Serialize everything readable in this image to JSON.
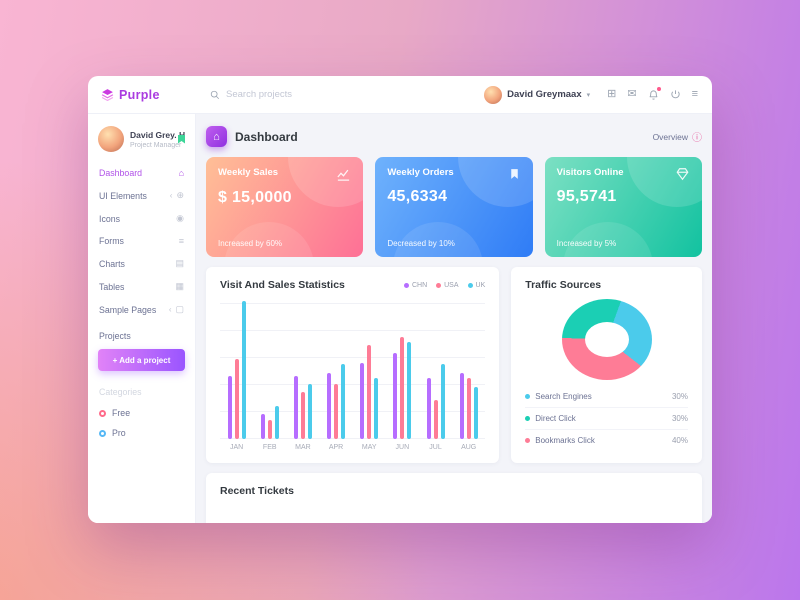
{
  "topbar": {
    "logo": "Purple",
    "search_placeholder": "Search projects",
    "user_name": "David Greymaax"
  },
  "sidebar": {
    "profile": {
      "name": "David Grey. H",
      "role": "Project Manager"
    },
    "items": [
      {
        "label": "Dashboard",
        "icon_name": "home-icon",
        "glyph": "⌂",
        "active": true,
        "chevron": false
      },
      {
        "label": "UI Elements",
        "icon_name": "ui-elements-icon",
        "glyph": "⊕",
        "active": false,
        "chevron": true
      },
      {
        "label": "Icons",
        "icon_name": "icons-icon",
        "glyph": "◉",
        "active": false,
        "chevron": false
      },
      {
        "label": "Forms",
        "icon_name": "forms-icon",
        "glyph": "≡",
        "active": false,
        "chevron": false
      },
      {
        "label": "Charts",
        "icon_name": "charts-icon",
        "glyph": "▤",
        "active": false,
        "chevron": false
      },
      {
        "label": "Tables",
        "icon_name": "tables-icon",
        "glyph": "▦",
        "active": false,
        "chevron": false
      },
      {
        "label": "Sample Pages",
        "icon_name": "sample-pages-icon",
        "glyph": "▢",
        "active": false,
        "chevron": true
      }
    ],
    "projects_label": "Projects",
    "add_project_label": "+ Add a project",
    "categories_label": "Categories",
    "categories": [
      {
        "label": "Free",
        "color": "#ff6b8a"
      },
      {
        "label": "Pro",
        "color": "#56b8f5"
      }
    ]
  },
  "header": {
    "title": "Dashboard",
    "overview_label": "Overview"
  },
  "stat_cards": [
    {
      "title": "Weekly Sales",
      "value": "$ 15,0000",
      "note": "Increased by 60%",
      "icon": "chart-line-icon",
      "gradient": [
        "#ffbf96",
        "#fe7096"
      ]
    },
    {
      "title": "Weekly Orders",
      "value": "45,6334",
      "note": "Decreased by 10%",
      "icon": "bookmark-icon",
      "gradient": [
        "#6fb2fc",
        "#2f7cf6"
      ]
    },
    {
      "title": "Visitors Online",
      "value": "95,5741",
      "note": "Increased by 5%",
      "icon": "diamond-icon",
      "gradient": [
        "#7ce0c3",
        "#12c2a0"
      ]
    }
  ],
  "sales_card": {
    "title": "Visit And Sales Statistics"
  },
  "traffic_card": {
    "title": "Traffic Sources"
  },
  "tickets_card": {
    "title": "Recent Tickets"
  },
  "chart_data": [
    {
      "type": "bar",
      "title": "Visit And Sales Statistics",
      "categories": [
        "JAN",
        "FEB",
        "MAR",
        "APR",
        "MAY",
        "JUN",
        "JUL",
        "AUG"
      ],
      "series": [
        {
          "name": "CHN",
          "color": "#b66dff",
          "values": [
            46,
            18,
            46,
            48,
            55,
            62,
            44,
            48
          ]
        },
        {
          "name": "USA",
          "color": "#fe7c96",
          "values": [
            58,
            14,
            34,
            40,
            68,
            74,
            28,
            44
          ]
        },
        {
          "name": "UK",
          "color": "#4bcbeb",
          "values": [
            100,
            24,
            40,
            54,
            44,
            70,
            54,
            38
          ]
        }
      ],
      "ylim": [
        0,
        100
      ],
      "grid": true,
      "legend_position": "top-right"
    },
    {
      "type": "pie",
      "donut": true,
      "title": "Traffic Sources",
      "labels": [
        "Search Engines",
        "Direct Click",
        "Bookmarks Click"
      ],
      "values": [
        30,
        30,
        40
      ],
      "colors": [
        "#4bcbeb",
        "#1bcfb4",
        "#fe7c96"
      ],
      "start_angle": 20,
      "draw_order": [
        0,
        2,
        1
      ],
      "legend_position": "bottom"
    }
  ]
}
